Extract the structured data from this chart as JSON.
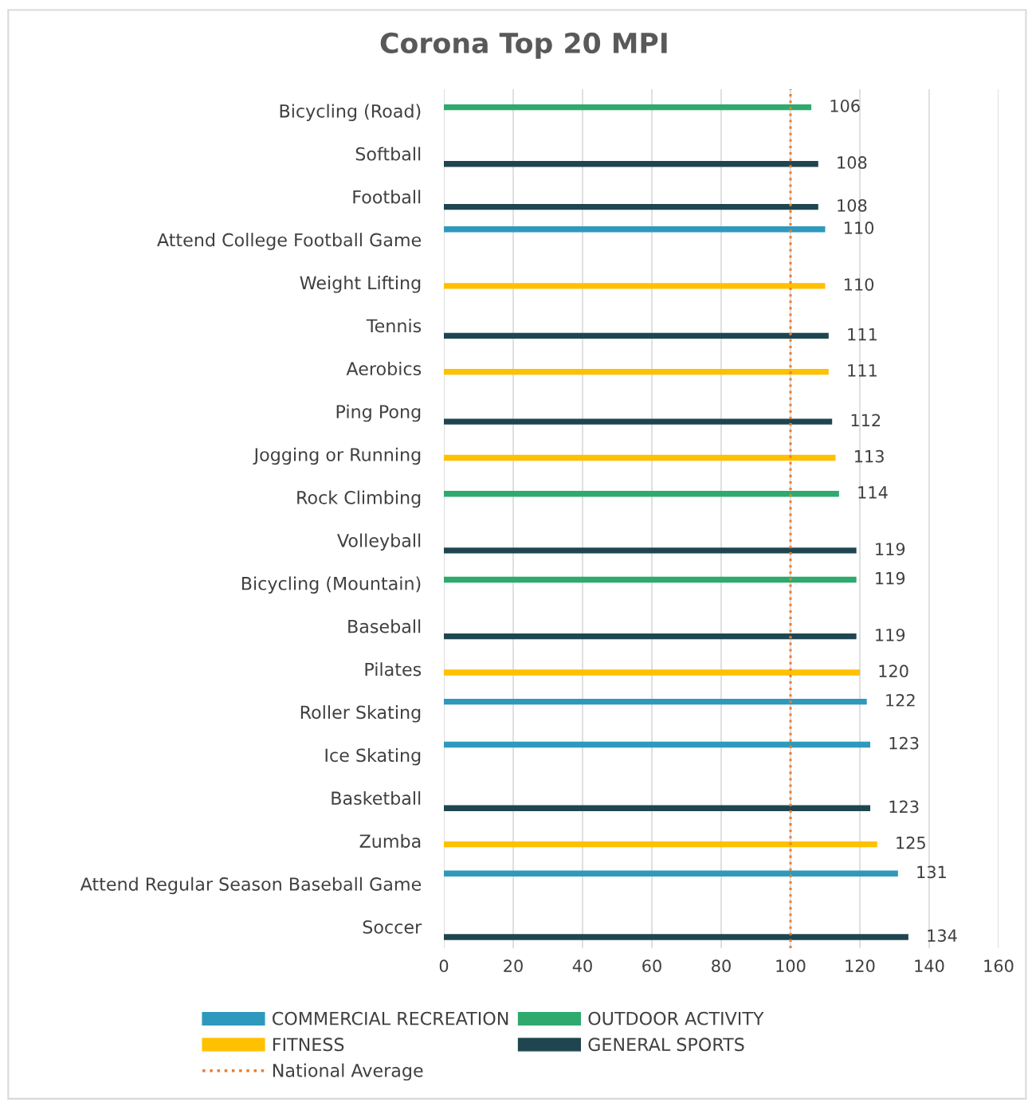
{
  "chart_data": {
    "type": "bar",
    "orientation": "horizontal",
    "title": "Corona Top 20 MPI",
    "categories": [
      "Bicycling (Road)",
      "Softball",
      "Football",
      "Attend College Football Game",
      "Weight Lifting",
      "Tennis",
      "Aerobics",
      "Ping Pong",
      "Jogging or Running",
      "Rock Climbing",
      "Volleyball",
      "Bicycling (Mountain)",
      "Baseball",
      "Pilates",
      "Roller Skating",
      "Ice Skating",
      "Basketball",
      "Zumba",
      "Attend Regular Season Baseball Game",
      "Soccer"
    ],
    "series": [
      {
        "name": "COMMERCIAL RECREATION",
        "color": "#2f99bd",
        "values": [
          null,
          null,
          null,
          110,
          null,
          null,
          null,
          null,
          null,
          null,
          null,
          null,
          null,
          null,
          122,
          123,
          null,
          null,
          131,
          null
        ]
      },
      {
        "name": "OUTDOOR ACTIVITY",
        "color": "#2eaa6e",
        "values": [
          106,
          null,
          null,
          null,
          null,
          null,
          null,
          null,
          null,
          114,
          null,
          119,
          null,
          null,
          null,
          null,
          null,
          null,
          null,
          null
        ]
      },
      {
        "name": "FITNESS",
        "color": "#ffc000",
        "values": [
          null,
          null,
          null,
          null,
          110,
          null,
          111,
          null,
          113,
          null,
          null,
          null,
          null,
          120,
          null,
          null,
          null,
          125,
          null,
          null
        ]
      },
      {
        "name": "GENERAL SPORTS",
        "color": "#1f4650",
        "values": [
          null,
          108,
          108,
          null,
          null,
          111,
          null,
          112,
          null,
          null,
          119,
          null,
          119,
          null,
          null,
          null,
          123,
          null,
          null,
          134
        ]
      }
    ],
    "ref_lines": [
      {
        "axis": "x",
        "value": 100,
        "label": "National Average",
        "color": "#ed7d31",
        "line_style": "dotted"
      }
    ],
    "xlim": [
      0,
      160
    ],
    "xticks": [
      0,
      20,
      40,
      60,
      80,
      100,
      120,
      140,
      160
    ],
    "grid": "x",
    "legend": "bottom",
    "data_labels": true
  }
}
